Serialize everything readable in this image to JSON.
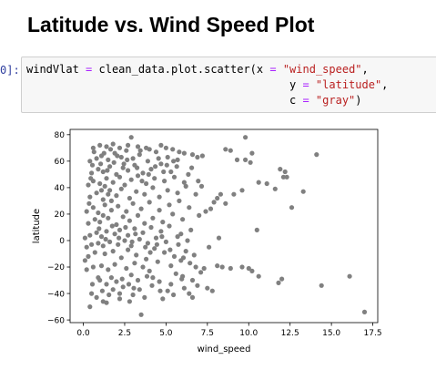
{
  "notebook": {
    "heading": "Latitude vs. Wind Speed Plot",
    "prompt": "0]:",
    "code": {
      "line1_var": "windVlat",
      "line1_eq": "=",
      "line1_call": "clean_data.plot.scatter(x",
      "line1_eq2": "=",
      "line1_x_str": "\"wind_speed\"",
      "line1_comma": ",",
      "line2_y": "y",
      "line2_eq": "=",
      "line2_y_str": "\"latitude\"",
      "line2_comma": ",",
      "line3_c": "c",
      "line3_eq": "=",
      "line3_c_str": "\"gray\"",
      "line3_end": ")"
    }
  },
  "chart_data": {
    "type": "scatter",
    "xlabel": "wind_speed",
    "ylabel": "latitude",
    "xlim": [
      -0.8,
      17.8
    ],
    "ylim": [
      -62,
      84
    ],
    "xticks": [
      0,
      2.5,
      5,
      7.5,
      10,
      12.5,
      15,
      17.5
    ],
    "xtick_labels": [
      "0.0",
      "2.5",
      "5.0",
      "7.5",
      "10.0",
      "12.5",
      "15.0",
      "17.5"
    ],
    "yticks": [
      80,
      60,
      40,
      20,
      0,
      -20,
      -40,
      -60
    ],
    "ytick_labels": [
      "80",
      "60",
      "40",
      "20",
      "0",
      "−20",
      "−40",
      "−60"
    ],
    "marker_color": "#808080",
    "grid": false,
    "points": [
      [
        2.9,
        78
      ],
      [
        9.8,
        78
      ],
      [
        8.6,
        69
      ],
      [
        8.9,
        68
      ],
      [
        10.2,
        66
      ],
      [
        14.1,
        65
      ],
      [
        4.7,
        72
      ],
      [
        5.0,
        70
      ],
      [
        5.4,
        69
      ],
      [
        5.8,
        67
      ],
      [
        6.1,
        66
      ],
      [
        6.6,
        65
      ],
      [
        6.9,
        63
      ],
      [
        7.2,
        64
      ],
      [
        9.3,
        61
      ],
      [
        9.8,
        61
      ],
      [
        10.1,
        59
      ],
      [
        11.9,
        54
      ],
      [
        12.2,
        52
      ],
      [
        11.1,
        43
      ],
      [
        11.6,
        39
      ],
      [
        12.1,
        48
      ],
      [
        12.3,
        48
      ],
      [
        10.6,
        44
      ],
      [
        13.3,
        37
      ],
      [
        12.6,
        25
      ],
      [
        9.6,
        38
      ],
      [
        9.1,
        35
      ],
      [
        8.3,
        35
      ],
      [
        8.1,
        32
      ],
      [
        7.9,
        29
      ],
      [
        7.7,
        24
      ],
      [
        8.6,
        28
      ],
      [
        7.4,
        22
      ],
      [
        7.0,
        19
      ],
      [
        10.5,
        8
      ],
      [
        8.9,
        -21
      ],
      [
        9.6,
        -20
      ],
      [
        10.0,
        -21
      ],
      [
        10.2,
        -23
      ],
      [
        10.6,
        -27
      ],
      [
        8.1,
        -19
      ],
      [
        8.4,
        -20
      ],
      [
        11.8,
        -32
      ],
      [
        12.0,
        -29
      ],
      [
        16.1,
        -27
      ],
      [
        14.4,
        -34
      ],
      [
        17.0,
        -54
      ],
      [
        7.8,
        -38
      ],
      [
        7.5,
        -36
      ],
      [
        3.5,
        -56
      ],
      [
        0.5,
        -40
      ],
      [
        0.8,
        -43
      ],
      [
        0.4,
        -50
      ],
      [
        1.2,
        -46
      ],
      [
        1.4,
        -47
      ],
      [
        2.2,
        -44
      ],
      [
        2.8,
        -46
      ],
      [
        3.0,
        -41
      ],
      [
        3.7,
        -43
      ],
      [
        4.8,
        -44
      ],
      [
        5.1,
        -38
      ],
      [
        6.1,
        -36
      ],
      [
        6.4,
        -40
      ],
      [
        6.9,
        -34
      ],
      [
        2.4,
        -35
      ],
      [
        1.0,
        -30
      ],
      [
        1.7,
        -28
      ],
      [
        2.0,
        -31
      ],
      [
        3.3,
        -30
      ],
      [
        4.2,
        -28
      ],
      [
        5.6,
        -25
      ],
      [
        6.0,
        -27
      ],
      [
        6.6,
        -30
      ],
      [
        7.1,
        -24
      ],
      [
        0.6,
        -20
      ],
      [
        1.1,
        -19
      ],
      [
        1.5,
        -22
      ],
      [
        1.9,
        -18
      ],
      [
        2.6,
        -21
      ],
      [
        3.1,
        -17
      ],
      [
        3.6,
        -20
      ],
      [
        4.0,
        -23
      ],
      [
        4.5,
        -16
      ],
      [
        5.3,
        -19
      ],
      [
        5.9,
        -15
      ],
      [
        6.8,
        -20
      ],
      [
        7.3,
        -21
      ],
      [
        0.3,
        -12
      ],
      [
        0.7,
        -9
      ],
      [
        1.3,
        -10
      ],
      [
        1.8,
        -8
      ],
      [
        2.3,
        -13
      ],
      [
        2.7,
        -7
      ],
      [
        3.2,
        -11
      ],
      [
        3.8,
        -14
      ],
      [
        4.3,
        -6
      ],
      [
        4.9,
        -9
      ],
      [
        5.5,
        -12
      ],
      [
        6.2,
        -8
      ],
      [
        6.7,
        -11
      ],
      [
        0.2,
        -5
      ],
      [
        0.5,
        -3
      ],
      [
        0.9,
        -2
      ],
      [
        1.2,
        -4
      ],
      [
        1.6,
        -1
      ],
      [
        2.1,
        -3
      ],
      [
        2.5,
        0
      ],
      [
        2.9,
        -4
      ],
      [
        3.4,
        1
      ],
      [
        3.9,
        -2
      ],
      [
        4.4,
        2
      ],
      [
        5.0,
        -1
      ],
      [
        5.7,
        3
      ],
      [
        6.3,
        0
      ],
      [
        0.1,
        2
      ],
      [
        0.4,
        4
      ],
      [
        0.8,
        6
      ],
      [
        1.1,
        3
      ],
      [
        1.4,
        7
      ],
      [
        1.9,
        5
      ],
      [
        2.2,
        8
      ],
      [
        2.7,
        4
      ],
      [
        3.1,
        9
      ],
      [
        3.6,
        6
      ],
      [
        4.1,
        10
      ],
      [
        4.7,
        7
      ],
      [
        5.2,
        11
      ],
      [
        5.9,
        5
      ],
      [
        6.5,
        8
      ],
      [
        0.3,
        13
      ],
      [
        0.7,
        16
      ],
      [
        1.0,
        14
      ],
      [
        1.5,
        17
      ],
      [
        2.0,
        12
      ],
      [
        2.4,
        18
      ],
      [
        2.8,
        15
      ],
      [
        3.3,
        19
      ],
      [
        3.7,
        13
      ],
      [
        4.2,
        17
      ],
      [
        4.8,
        14
      ],
      [
        5.4,
        20
      ],
      [
        6.0,
        16
      ],
      [
        0.2,
        22
      ],
      [
        0.6,
        25
      ],
      [
        0.9,
        21
      ],
      [
        1.3,
        27
      ],
      [
        1.7,
        23
      ],
      [
        2.1,
        26
      ],
      [
        2.6,
        22
      ],
      [
        3.0,
        28
      ],
      [
        3.5,
        24
      ],
      [
        4.0,
        29
      ],
      [
        4.6,
        23
      ],
      [
        5.2,
        27
      ],
      [
        5.8,
        30
      ],
      [
        6.4,
        25
      ],
      [
        0.4,
        33
      ],
      [
        0.8,
        36
      ],
      [
        1.2,
        31
      ],
      [
        1.6,
        38
      ],
      [
        2.0,
        34
      ],
      [
        2.3,
        39
      ],
      [
        2.8,
        32
      ],
      [
        3.2,
        37
      ],
      [
        3.7,
        35
      ],
      [
        4.2,
        40
      ],
      [
        4.6,
        33
      ],
      [
        5.1,
        38
      ],
      [
        5.7,
        36
      ],
      [
        6.2,
        41
      ],
      [
        6.8,
        35
      ],
      [
        0.3,
        42
      ],
      [
        0.6,
        45
      ],
      [
        1.0,
        43
      ],
      [
        1.4,
        47
      ],
      [
        1.8,
        44
      ],
      [
        2.2,
        48
      ],
      [
        2.5,
        42
      ],
      [
        2.9,
        46
      ],
      [
        3.3,
        49
      ],
      [
        3.8,
        43
      ],
      [
        4.3,
        47
      ],
      [
        4.9,
        45
      ],
      [
        5.5,
        48
      ],
      [
        6.1,
        44
      ],
      [
        0.5,
        51
      ],
      [
        0.9,
        54
      ],
      [
        1.2,
        52
      ],
      [
        1.6,
        56
      ],
      [
        2.0,
        50
      ],
      [
        2.4,
        55
      ],
      [
        2.7,
        53
      ],
      [
        3.1,
        57
      ],
      [
        3.6,
        51
      ],
      [
        4.1,
        54
      ],
      [
        4.7,
        58
      ],
      [
        5.3,
        52
      ],
      [
        0.4,
        60
      ],
      [
        0.8,
        62
      ],
      [
        1.1,
        64
      ],
      [
        1.5,
        61
      ],
      [
        1.9,
        66
      ],
      [
        2.3,
        63
      ],
      [
        2.6,
        68
      ],
      [
        3.0,
        62
      ],
      [
        3.4,
        65
      ],
      [
        3.9,
        60
      ],
      [
        4.4,
        67
      ],
      [
        5.1,
        63
      ],
      [
        5.7,
        61
      ],
      [
        0.6,
        70
      ],
      [
        1.0,
        72
      ],
      [
        1.4,
        71
      ],
      [
        1.8,
        73
      ],
      [
        2.2,
        70
      ],
      [
        2.7,
        72
      ],
      [
        3.3,
        71
      ],
      [
        3.8,
        70
      ],
      [
        4.0,
        69
      ],
      [
        1.1,
        38
      ],
      [
        1.3,
        41
      ],
      [
        1.5,
        35
      ],
      [
        1.7,
        30
      ],
      [
        1.2,
        19
      ],
      [
        0.9,
        -28
      ],
      [
        1.4,
        -33
      ],
      [
        2.9,
        -26
      ],
      [
        3.4,
        -37
      ],
      [
        4.6,
        -31
      ],
      [
        5.3,
        -33
      ],
      [
        6.6,
        -43
      ],
      [
        2.2,
        -40
      ],
      [
        1.8,
        -37
      ],
      [
        7.6,
        -5
      ],
      [
        8.2,
        2
      ],
      [
        0.1,
        -15
      ],
      [
        0.2,
        -22
      ],
      [
        0.35,
        28
      ],
      [
        0.45,
        47
      ],
      [
        0.55,
        57
      ],
      [
        0.65,
        67
      ],
      [
        1.05,
        58
      ],
      [
        1.25,
        66
      ],
      [
        1.45,
        53
      ],
      [
        1.65,
        69
      ],
      [
        1.85,
        59
      ],
      [
        2.05,
        64
      ],
      [
        2.45,
        58
      ],
      [
        2.65,
        61
      ],
      [
        3.25,
        55
      ],
      [
        3.45,
        68
      ],
      [
        3.55,
        45
      ],
      [
        3.95,
        50
      ],
      [
        4.35,
        56
      ],
      [
        4.55,
        62
      ],
      [
        4.85,
        52
      ],
      [
        5.05,
        57
      ],
      [
        5.45,
        60
      ],
      [
        5.65,
        56
      ],
      [
        6.35,
        50
      ],
      [
        6.55,
        55
      ],
      [
        6.95,
        45
      ],
      [
        7.15,
        41
      ],
      [
        0.95,
        9
      ],
      [
        1.35,
        1
      ],
      [
        1.75,
        11
      ],
      [
        2.15,
        2
      ],
      [
        2.55,
        10
      ],
      [
        2.95,
        -1
      ],
      [
        3.15,
        5
      ],
      [
        3.75,
        -5
      ],
      [
        4.05,
        -9
      ],
      [
        4.45,
        -3
      ],
      [
        4.75,
        3
      ],
      [
        5.25,
        -7
      ],
      [
        5.75,
        -3
      ],
      [
        6.05,
        -13
      ],
      [
        6.45,
        -17
      ],
      [
        0.55,
        -33
      ],
      [
        1.15,
        -38
      ],
      [
        1.55,
        -41
      ],
      [
        2.35,
        -29
      ],
      [
        2.75,
        -33
      ],
      [
        3.05,
        -36
      ],
      [
        3.85,
        -27
      ],
      [
        4.15,
        -34
      ],
      [
        4.65,
        -38
      ],
      [
        5.45,
        -41
      ],
      [
        5.95,
        -29
      ]
    ]
  }
}
